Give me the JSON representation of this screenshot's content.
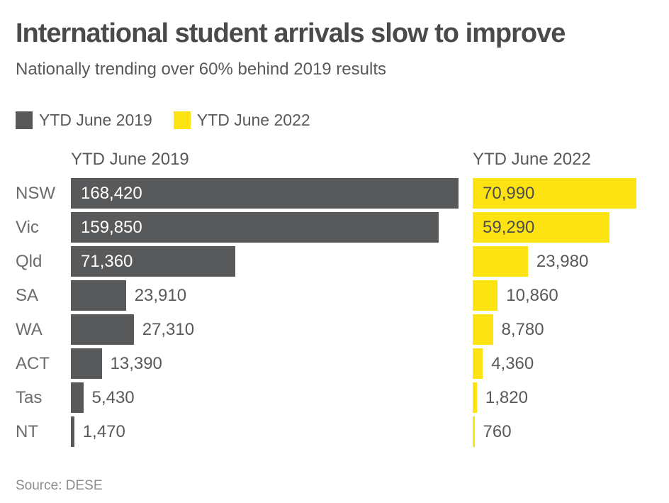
{
  "header": {
    "title": "International student arrivals slow to improve",
    "subtitle": "Nationally trending over 60% behind 2019 results"
  },
  "legend": [
    {
      "label": "YTD June 2019",
      "color": "#58595B"
    },
    {
      "label": "YTD June 2022",
      "color": "#FDE311"
    }
  ],
  "chart_data": {
    "type": "bar",
    "orientation": "horizontal",
    "title": "International student arrivals slow to improve",
    "subtitle": "Nationally trending over 60% behind 2019 results",
    "categories": [
      "NSW",
      "Vic",
      "Qld",
      "SA",
      "WA",
      "ACT",
      "Tas",
      "NT"
    ],
    "column_headers": [
      "YTD June 2019",
      "YTD June 2022"
    ],
    "series": [
      {
        "name": "YTD June 2019",
        "color": "#58595B",
        "inside_label_color": "#ffffff",
        "values": [
          168420,
          159850,
          71360,
          23910,
          27310,
          13390,
          5430,
          1470
        ],
        "labels": [
          "168,420",
          "159,850",
          "71,360",
          "23,910",
          "27,310",
          "13,390",
          "5,430",
          "1,470"
        ]
      },
      {
        "name": "YTD June 2022",
        "color": "#FDE311",
        "inside_label_color": "#4d4d4f",
        "values": [
          70990,
          59290,
          23980,
          10860,
          8780,
          4360,
          1820,
          760
        ],
        "labels": [
          "70,990",
          "59,290",
          "23,980",
          "10,860",
          "8,780",
          "4,360",
          "1,820",
          "760"
        ]
      }
    ],
    "xlim": [
      0,
      168420
    ],
    "grid": false,
    "legend_position": "top-left",
    "value_labels_shown": true
  },
  "footer": {
    "source": "Source: DESE"
  }
}
